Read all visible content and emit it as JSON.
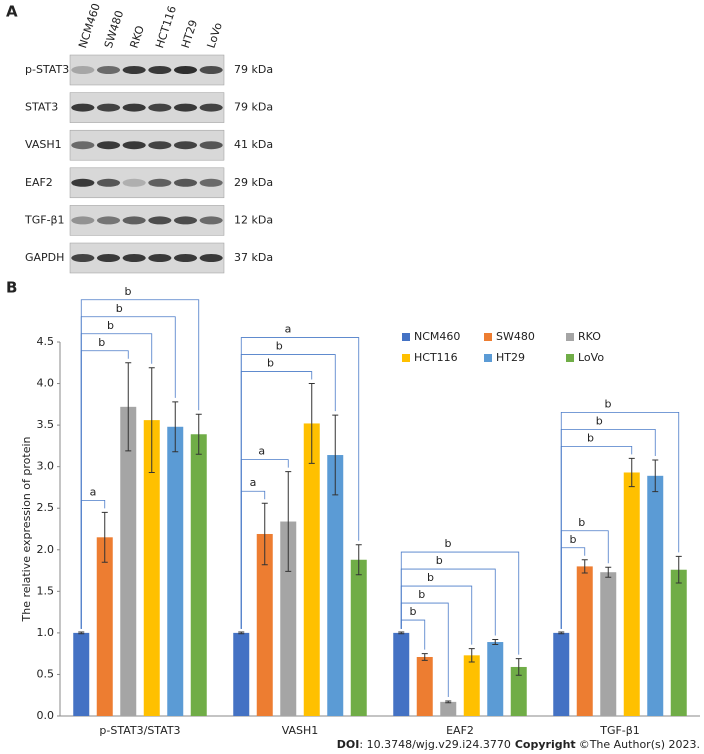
{
  "panel_a": {
    "label": "A",
    "lanes": [
      "NCM460",
      "SW480",
      "RKO",
      "HCT116",
      "HT29",
      "LoVo"
    ],
    "rows": [
      {
        "protein": "p-STAT3",
        "size": "79 kDa"
      },
      {
        "protein": "STAT3",
        "size": "79 kDa"
      },
      {
        "protein": "VASH1",
        "size": "41 kDa"
      },
      {
        "protein": "EAF2",
        "size": "29 kDa"
      },
      {
        "protein": "TGF-β1",
        "size": "12 kDa"
      },
      {
        "protein": "GAPDH",
        "size": "37 kDa"
      }
    ]
  },
  "panel_b": {
    "label": "B"
  },
  "chart_data": {
    "type": "bar",
    "y_label": "The relative expression of protein",
    "categories": [
      "p-STAT3/STAT3",
      "VASH1",
      "EAF2",
      "TGF-β1"
    ],
    "series": [
      {
        "name": "NCM460",
        "color": "#4472c4",
        "values": [
          1.0,
          1.0,
          1.0,
          1.0
        ],
        "errors": [
          0.01,
          0.01,
          0.01,
          0.01
        ],
        "significance": [
          null,
          null,
          null,
          null
        ]
      },
      {
        "name": "SW480",
        "color": "#ed7d31",
        "values": [
          2.15,
          2.19,
          0.71,
          1.8
        ],
        "errors": [
          0.3,
          0.37,
          0.04,
          0.08
        ],
        "significance": [
          "a",
          "a",
          "b",
          "b"
        ]
      },
      {
        "name": "RKO",
        "color": "#a5a5a5",
        "values": [
          3.72,
          2.34,
          0.17,
          1.73
        ],
        "errors": [
          0.53,
          0.6,
          0.01,
          0.06
        ],
        "significance": [
          "b",
          "a",
          "b",
          "b"
        ]
      },
      {
        "name": "HCT116",
        "color": "#ffc000",
        "values": [
          3.56,
          3.52,
          0.73,
          2.93
        ],
        "errors": [
          0.63,
          0.48,
          0.08,
          0.17
        ],
        "significance": [
          "b",
          "b",
          "b",
          "b"
        ]
      },
      {
        "name": "HT29",
        "color": "#5b9bd5",
        "values": [
          3.48,
          3.14,
          0.89,
          2.89
        ],
        "errors": [
          0.3,
          0.48,
          0.03,
          0.19
        ],
        "significance": [
          "b",
          "b",
          "b",
          "b"
        ]
      },
      {
        "name": "LoVo",
        "color": "#70ad47",
        "values": [
          3.39,
          1.88,
          0.59,
          1.76
        ],
        "errors": [
          0.24,
          0.18,
          0.1,
          0.16
        ],
        "significance": [
          "b",
          "a",
          "b",
          "b"
        ]
      }
    ],
    "ylim": [
      0,
      4.5
    ],
    "yticks": [
      {
        "value": 0,
        "label": "0.0"
      },
      {
        "value": 0.5,
        "label": "0.5"
      },
      {
        "value": 1,
        "label": "1.0"
      },
      {
        "value": 1.5,
        "label": "1.5"
      },
      {
        "value": 2,
        "label": "2.0"
      },
      {
        "value": 2.5,
        "label": "2.5"
      },
      {
        "value": 3,
        "label": "3.0"
      },
      {
        "value": 3.5,
        "label": "3.5"
      },
      {
        "value": 4,
        "label": "4.0"
      },
      {
        "value": 4.5,
        "label": "4.5"
      }
    ],
    "legend": "upper right"
  },
  "footer": {
    "doi_label": "DOI",
    "doi": ": 10.3748/wjg.v29.i24.3770",
    "copyright_label": "Copyright",
    "copyright": "©The Author(s) 2023."
  }
}
